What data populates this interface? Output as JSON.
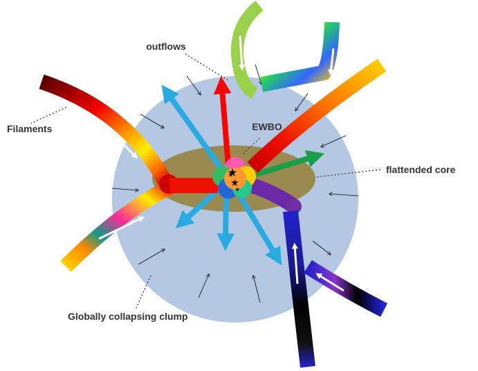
{
  "labels": {
    "outflows": "outflows",
    "ewbo": "EWBO",
    "filaments": "Filaments",
    "core": "flattended core",
    "clump": "Globally collapsing clump"
  }
}
